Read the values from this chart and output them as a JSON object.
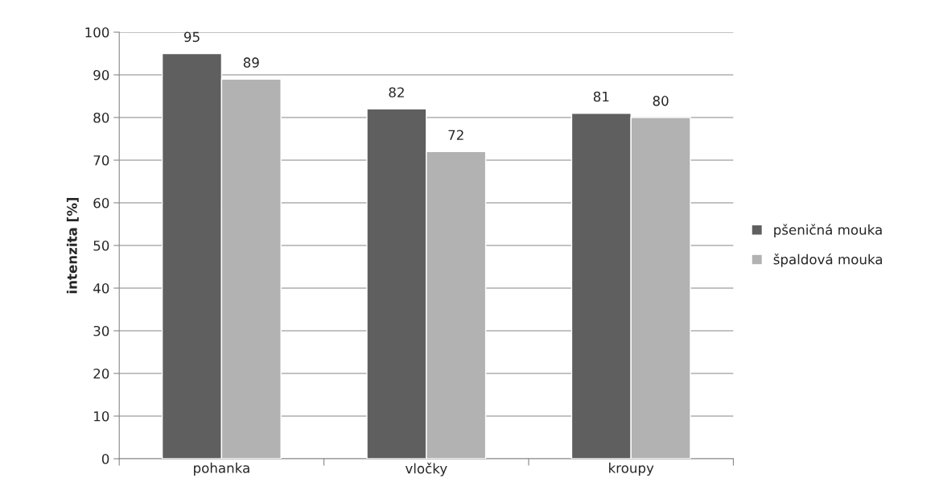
{
  "chart_data": {
    "type": "bar",
    "ylabel": "intenzita [%]",
    "categories": [
      "pohanka",
      "vločky",
      "kroupy"
    ],
    "series": [
      {
        "name": "pšeničná mouka",
        "color": "#5f5f5f",
        "values": [
          95,
          82,
          81
        ]
      },
      {
        "name": "špaldová mouka",
        "color": "#b2b2b2",
        "values": [
          89,
          72,
          80
        ]
      }
    ],
    "ylim": [
      0,
      100
    ],
    "yticks": [
      0,
      10,
      20,
      30,
      40,
      50,
      60,
      70,
      80,
      90,
      100
    ],
    "grid": "y",
    "legend": "right",
    "data_labels": true
  }
}
